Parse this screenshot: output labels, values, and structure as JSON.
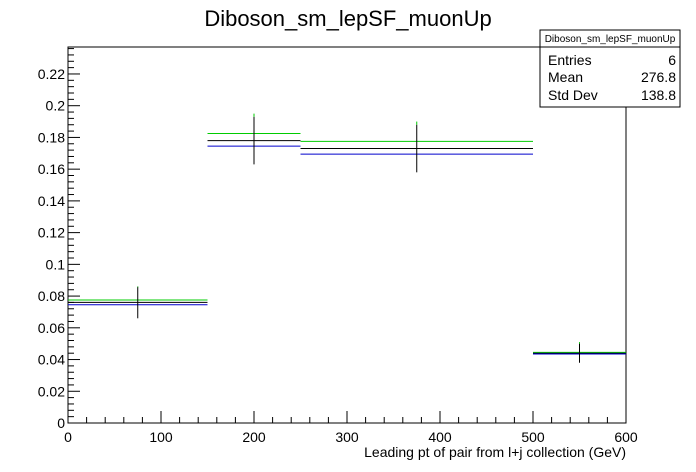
{
  "chart_data": {
    "type": "step-histogram",
    "title": "Diboson_sm_lepSF_muonUp",
    "xlabel": "Leading pt of pair from l+j collection (GeV)",
    "ylabel": "",
    "xlim": [
      0,
      600
    ],
    "ylim": [
      0,
      0.237
    ],
    "x_ticks": [
      0,
      100,
      200,
      300,
      400,
      500,
      600
    ],
    "y_ticks": [
      0,
      0.02,
      0.04,
      0.06,
      0.08,
      0.1,
      0.12,
      0.14,
      0.16,
      0.18,
      0.2,
      0.22
    ],
    "y_tick_labels": [
      "0",
      "0.02",
      "0.04",
      "0.06",
      "0.08",
      "0.1",
      "0.12",
      "0.14",
      "0.16",
      "0.18",
      "0.2",
      "0.22"
    ],
    "bins": [
      {
        "low": 0,
        "high": 150,
        "center": 75
      },
      {
        "low": 150,
        "high": 250,
        "center": 200
      },
      {
        "low": 250,
        "high": 500,
        "center": 375
      },
      {
        "low": 500,
        "high": 600,
        "center": 550
      }
    ],
    "series": [
      {
        "color": "#00cc00",
        "values": [
          0.0775,
          0.1825,
          0.1775,
          0.0445
        ]
      },
      {
        "color": "#000000",
        "values": [
          0.076,
          0.178,
          0.173,
          0.044
        ]
      },
      {
        "color": "#0000cc",
        "values": [
          0.0745,
          0.1745,
          0.1695,
          0.0435
        ]
      }
    ],
    "error_bars": {
      "color": "#000000",
      "values": [
        0.076,
        0.178,
        0.173,
        0.044
      ],
      "lower": [
        0.066,
        0.163,
        0.158,
        0.038
      ],
      "upper": [
        0.086,
        0.193,
        0.188,
        0.05
      ]
    },
    "green_error_tips": [
      0.0855,
      0.195,
      0.19,
      0.051
    ],
    "stats_box": {
      "title": "Diboson_sm_lepSF_muonUp",
      "rows": [
        {
          "label": "Entries",
          "value": "6"
        },
        {
          "label": "Mean",
          "value": "276.8"
        },
        {
          "label": "Std Dev",
          "value": "138.8"
        }
      ]
    },
    "grid": false,
    "legend": "none"
  }
}
